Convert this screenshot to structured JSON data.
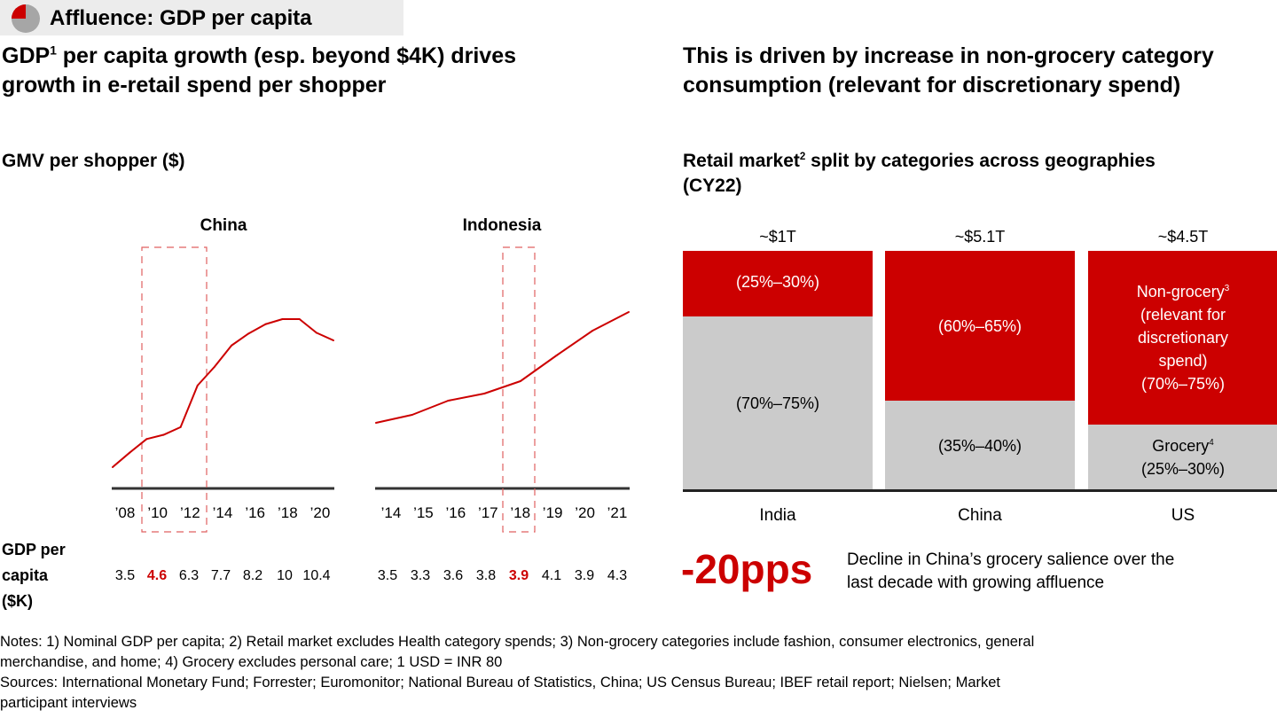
{
  "banner": {
    "title": "Affluence: GDP per capita",
    "icon": "quarter-pie-icon",
    "icon_colors": {
      "filled": "#cc0000",
      "rest": "#a6a6a6"
    }
  },
  "left": {
    "headline_pre": "GDP",
    "headline_sup": "1",
    "headline_line1_rest": " per capita growth (esp. beyond $4K) drives",
    "headline_line2": "growth in e-retail spend per shopper",
    "subhead": "GMV per shopper ($)"
  },
  "right": {
    "headline_line1": "This is driven by increase in non-grocery category",
    "headline_line2": "consumption (relevant for discretionary spend)",
    "subhead_pre": "Retail market",
    "subhead_sup": "2",
    "subhead_post": " split by categories across geographies",
    "subhead_line2": "(CY22)"
  },
  "gdp_row": {
    "label_lines": [
      "GDP per",
      "capita",
      "($K)"
    ]
  },
  "stat": {
    "value": "-20pps",
    "description_line1": "Decline in China’s grocery salience over the",
    "description_line2": "last decade with growing affluence"
  },
  "notes": {
    "line1": "Notes: 1) Nominal GDP per capita; 2) Retail market excludes Health category spends; 3) Non-grocery categories include fashion, consumer electronics, general",
    "line2": "merchandise, and home; 4) Grocery excludes personal care; 1 USD = INR 80",
    "line3": "Sources: International Monetary Fund; Forrester; Euromonitor; National Bureau of Statistics, China; US Census Bureau; IBEF retail report; Nielsen; Market",
    "line4": "participant interviews"
  },
  "colors": {
    "accent": "#cc0000",
    "grey": "#cbcbcb",
    "axis": "#333333"
  },
  "chart_data": [
    {
      "type": "line",
      "title": "China",
      "ylabel": "GMV per shopper ($)",
      "x": [
        2008,
        2009,
        2010,
        2011,
        2012,
        2013,
        2014,
        2015,
        2016,
        2017,
        2018,
        2019,
        2020,
        2021
      ],
      "tick_labels": [
        "’08",
        "’10",
        "’12",
        "’14",
        "’16",
        "’18",
        "’20"
      ],
      "values_relative": [
        0,
        17,
        33,
        38,
        47,
        96,
        118,
        143,
        157,
        168,
        174,
        174,
        158,
        149
      ],
      "y_axis_unlabeled": true,
      "highlight_range": [
        "’10",
        "’12"
      ],
      "gdp_per_capita_k": [
        "3.5",
        "4.6",
        "6.3",
        "7.7",
        "8.2",
        "10",
        "10.4"
      ],
      "gdp_highlight_index": 1
    },
    {
      "type": "line",
      "title": "Indonesia",
      "ylabel": "GMV per shopper ($)",
      "x": [
        2014,
        2015,
        2016,
        2017,
        2018,
        2019,
        2020,
        2021
      ],
      "tick_labels": [
        "’14",
        "’15",
        "’16",
        "’17",
        "’18",
        "’19",
        "’20",
        "’21"
      ],
      "values_relative": [
        0,
        9,
        25,
        33,
        47,
        76,
        104,
        125
      ],
      "y_axis_unlabeled": true,
      "highlight_range": [
        "’18",
        "’18"
      ],
      "gdp_per_capita_k": [
        "3.5",
        "3.3",
        "3.6",
        "3.8",
        "3.9",
        "4.1",
        "3.9",
        "4.3"
      ],
      "gdp_highlight_index": 4
    },
    {
      "type": "bar",
      "stacked": true,
      "title": "Retail market split by categories across geographies (CY22)",
      "categories": [
        "India",
        "China",
        "US"
      ],
      "market_size_labels": [
        "~$1T",
        "~$5.1T",
        "~$4.5T"
      ],
      "series": [
        {
          "name": "Grocery",
          "values_pct": [
            72.5,
            37.5,
            27.5
          ],
          "labels": [
            "(70%–75%)",
            "(35%–40%)",
            "(25%–30%)"
          ],
          "color": "#cbcbcb"
        },
        {
          "name": "Non-grocery",
          "values_pct": [
            27.5,
            62.5,
            72.5
          ],
          "labels": [
            "(25%–30%)",
            "(60%–65%)",
            "(70%–75%)"
          ],
          "color": "#cc0000"
        }
      ],
      "us_segment_captions": {
        "non_grocery_lines": [
          "Non-grocery",
          "(relevant for",
          "discretionary",
          "spend)"
        ],
        "non_grocery_sup": "3",
        "grocery_line": "Grocery",
        "grocery_sup": "4"
      },
      "ylim": [
        0,
        100
      ]
    }
  ]
}
